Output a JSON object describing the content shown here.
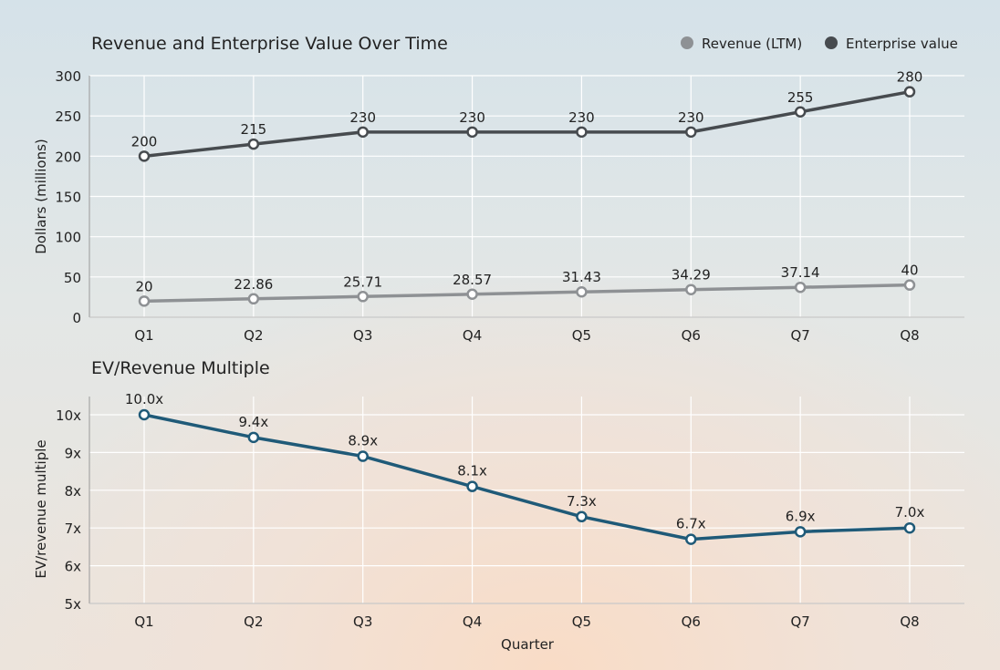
{
  "chart_data": [
    {
      "type": "line",
      "title": "Revenue and Enterprise Value Over Time",
      "xlabel": "",
      "ylabel": "Dollars (millions)",
      "categories": [
        "Q1",
        "Q2",
        "Q3",
        "Q4",
        "Q5",
        "Q6",
        "Q7",
        "Q8"
      ],
      "ylim": [
        0,
        300
      ],
      "yticks": [
        0,
        50,
        100,
        150,
        200,
        250,
        300
      ],
      "grid": true,
      "legend": "top-right",
      "series": [
        {
          "name": "Revenue (LTM)",
          "color": "#8e9194",
          "values": [
            20,
            22.86,
            25.71,
            28.57,
            31.43,
            34.29,
            37.14,
            40
          ],
          "labels": [
            "20",
            "22.86",
            "25.71",
            "28.57",
            "31.43",
            "34.29",
            "37.14",
            "40"
          ]
        },
        {
          "name": "Enterprise value",
          "color": "#474b4f",
          "values": [
            200,
            215,
            230,
            230,
            230,
            230,
            255,
            280
          ],
          "labels": [
            "200",
            "215",
            "230",
            "230",
            "230",
            "230",
            "255",
            "280"
          ]
        }
      ]
    },
    {
      "type": "line",
      "title": "EV/Revenue Multiple",
      "xlabel": "Quarter",
      "ylabel": "EV/revenue multiple",
      "categories": [
        "Q1",
        "Q2",
        "Q3",
        "Q4",
        "Q5",
        "Q6",
        "Q7",
        "Q8"
      ],
      "ylim": [
        5,
        10.5
      ],
      "yticks": [
        5,
        6,
        7,
        8,
        9,
        10
      ],
      "ytick_labels": [
        "5x",
        "6x",
        "7x",
        "8x",
        "9x",
        "10x"
      ],
      "grid": true,
      "series": [
        {
          "color": "#1f5a78",
          "values": [
            10.0,
            9.4,
            8.9,
            8.1,
            7.3,
            6.7,
            6.9,
            7.0
          ],
          "labels": [
            "10.0x",
            "9.4x",
            "8.9x",
            "8.1x",
            "7.3x",
            "6.7x",
            "6.9x",
            "7.0x"
          ]
        }
      ]
    }
  ]
}
